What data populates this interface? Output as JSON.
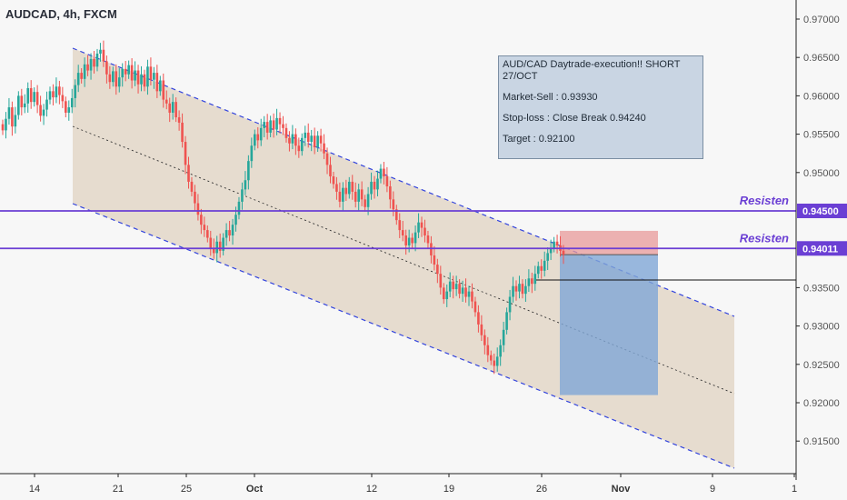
{
  "header": {
    "ticker": "AUDCAD, 4h, FXCM"
  },
  "annotation": {
    "line1": "AUD/CAD Daytrade-execution!! SHORT",
    "line2": "27/OCT",
    "market_sell": "Market-Sell : 0.93930",
    "stop_loss": "Stop-loss : Close Break 0.94240",
    "target": "Target : 0.92100"
  },
  "colors": {
    "bull": "#26a69a",
    "bear": "#ef5350",
    "resistance": "#6b3fd4",
    "channel": "#3344dd",
    "channel_fill": "#e0d3c1",
    "stop_zone": "#e89a9a",
    "target_zone": "#7fa6d6"
  },
  "chart_data": {
    "type": "candlestick",
    "symbol": "AUDCAD",
    "timeframe": "4h",
    "source": "FXCM",
    "y_axis": {
      "ylim": [
        0.91,
        0.972
      ],
      "ticks": [
        "0.97000",
        "0.96500",
        "0.96000",
        "0.95500",
        "0.95000",
        "0.94500",
        "0.94011",
        "0.93500",
        "0.93000",
        "0.92500",
        "0.92000",
        "0.91500"
      ],
      "values": [
        0.97,
        0.965,
        0.96,
        0.955,
        0.95,
        0.945,
        0.94011,
        0.935,
        0.93,
        0.925,
        0.92,
        0.915
      ]
    },
    "x_axis": {
      "labels": [
        "14",
        "21",
        "25",
        "Oct",
        "12",
        "19",
        "26",
        "Nov",
        "9",
        "1"
      ],
      "bold": [
        false,
        false,
        false,
        true,
        false,
        false,
        false,
        true,
        false,
        false
      ]
    },
    "resistance_levels": [
      {
        "label": "Resisten",
        "price": 0.945,
        "price_label": "0.94500"
      },
      {
        "label": "Resisten",
        "price": 0.94011,
        "price_label": "0.94011"
      }
    ],
    "trade": {
      "entry": 0.9393,
      "stop": 0.9424,
      "target": 0.921
    },
    "current_price_line": 0.936,
    "candles_close": [
      0.9555,
      0.957,
      0.9585,
      0.956,
      0.9575,
      0.96,
      0.9585,
      0.959,
      0.961,
      0.9592,
      0.9605,
      0.9588,
      0.9574,
      0.9582,
      0.9595,
      0.9606,
      0.9598,
      0.9612,
      0.9601,
      0.9593,
      0.9578,
      0.9585,
      0.9597,
      0.9614,
      0.963,
      0.9622,
      0.9641,
      0.9633,
      0.9648,
      0.9638,
      0.9655,
      0.966,
      0.9645,
      0.9628,
      0.9618,
      0.9632,
      0.9612,
      0.9624,
      0.9635,
      0.9628,
      0.964,
      0.962,
      0.9633,
      0.9615,
      0.9628,
      0.9612,
      0.9638,
      0.9621,
      0.963,
      0.9606,
      0.962,
      0.9595,
      0.959,
      0.9578,
      0.9592,
      0.9572,
      0.9565,
      0.954,
      0.951,
      0.9488,
      0.9475,
      0.946,
      0.9445,
      0.9432,
      0.9425,
      0.9415,
      0.9402,
      0.9395,
      0.941,
      0.9398,
      0.9415,
      0.9425,
      0.9418,
      0.9432,
      0.9445,
      0.9462,
      0.9478,
      0.949,
      0.9515,
      0.9535,
      0.955,
      0.9542,
      0.9558,
      0.9566,
      0.9552,
      0.9568,
      0.9556,
      0.9571,
      0.9563,
      0.9558,
      0.9545,
      0.9538,
      0.955,
      0.9535,
      0.9528,
      0.9545,
      0.9552,
      0.954,
      0.9548,
      0.9533,
      0.9548,
      0.9538,
      0.9525,
      0.951,
      0.9495,
      0.9485,
      0.9475,
      0.9462,
      0.948,
      0.9472,
      0.9488,
      0.9475,
      0.9462,
      0.9478,
      0.9465,
      0.9455,
      0.9472,
      0.9488,
      0.9478,
      0.9492,
      0.9505,
      0.9495,
      0.9482,
      0.9465,
      0.9452,
      0.9438,
      0.9425,
      0.9418,
      0.9405,
      0.9415,
      0.9408,
      0.9422,
      0.9435,
      0.9428,
      0.9418,
      0.9408,
      0.9392,
      0.938,
      0.9368,
      0.935,
      0.9335,
      0.9345,
      0.9358,
      0.9348,
      0.9355,
      0.9342,
      0.935,
      0.9338,
      0.9345,
      0.9332,
      0.9318,
      0.9302,
      0.9288,
      0.9275,
      0.9262,
      0.9255,
      0.9248,
      0.926,
      0.9275,
      0.9295,
      0.9318,
      0.9338,
      0.9352,
      0.9345,
      0.9355,
      0.9342,
      0.9352,
      0.9362,
      0.9355,
      0.9368,
      0.9378,
      0.9372,
      0.9385,
      0.9395,
      0.9402,
      0.941,
      0.9405,
      0.9398,
      0.9393
    ]
  }
}
